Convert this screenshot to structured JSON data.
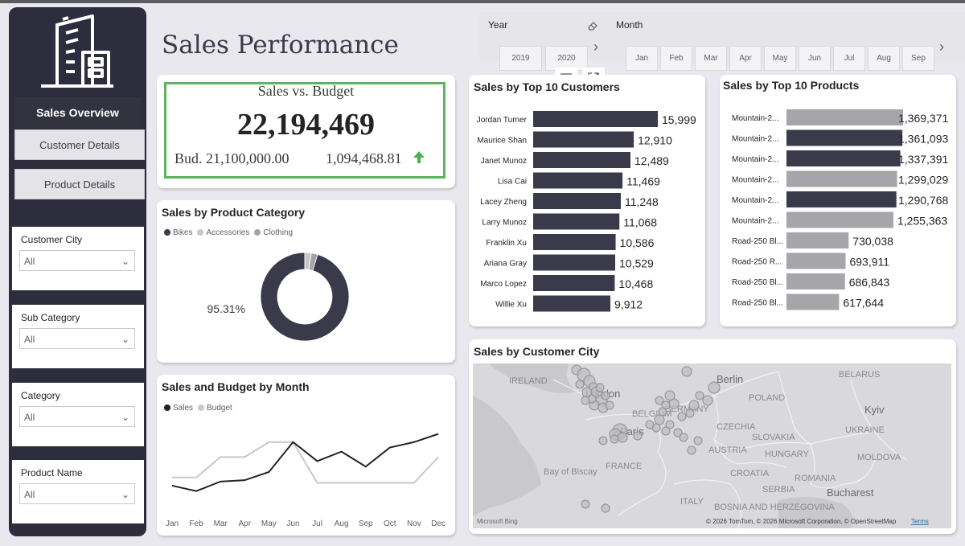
{
  "page": {
    "title": "Sales Performance"
  },
  "sidebar": {
    "nav_title": "Sales Overview",
    "nav_buttons": [
      "Customer Details",
      "Product Details"
    ],
    "slicers": [
      {
        "label": "Customer City",
        "value": "All"
      },
      {
        "label": "Sub Category",
        "value": "All"
      },
      {
        "label": "Category",
        "value": "All"
      },
      {
        "label": "Product Name",
        "value": "All"
      }
    ]
  },
  "filters": {
    "year_label": "Year",
    "years": [
      "2019",
      "2020"
    ],
    "month_label": "Month",
    "months": [
      "Jan",
      "Feb",
      "Mar",
      "Apr",
      "May",
      "Jun",
      "Jul",
      "Aug",
      "Sep"
    ]
  },
  "kpi": {
    "title": "Sales vs. Budget",
    "value": "22,194,469",
    "budget": "Bud. 21,100,000.00",
    "difference": "1,094,468.81",
    "up_color": "#4caf50"
  },
  "colors": {
    "dark": "#3a3a4a",
    "light": "#c8c8cc",
    "mid": "#a3a3a8"
  },
  "charts": {
    "customers_title": "Sales by Top 10 Customers",
    "products_title": "Sales by Top 10 Products",
    "category_title": "Sales by Product Category",
    "month_title": "Sales and Budget by Month",
    "city_title": "Sales by Customer City"
  },
  "map": {
    "labels": [
      "IRELAND",
      "London",
      "BELGIUM",
      "GERMANY",
      "Berlin",
      "POLAND",
      "BELARUS",
      "Kyiv",
      "UKRAINE",
      "CZECHIA",
      "SLOVAKIA",
      "Paris",
      "FRANCE",
      "Bay of Biscay",
      "AUSTRIA",
      "HUNGARY",
      "MOLDOVA",
      "ROMANIA",
      "Bucharest",
      "CROATIA",
      "SERBIA",
      "BOSNIA AND HERZEGOVINA",
      "ITALY"
    ],
    "attribution": "© 2026 TomTom, © 2026 Microsoft Corporation, © OpenStreetMap",
    "terms": "Terms",
    "brand": "Microsoft Bing"
  },
  "chart_data": [
    {
      "type": "bar",
      "title": "Sales by Top 10 Customers",
      "categories": [
        "Jordan Turner",
        "Maurice Shan",
        "Janet Munoz",
        "Lisa Cai",
        "Lacey Zheng",
        "Larry Munoz",
        "Franklin Xu",
        "Ariana Gray",
        "Marco Lopez",
        "Willie Xu"
      ],
      "values": [
        15999,
        12910,
        12489,
        11469,
        11248,
        11068,
        10586,
        10529,
        10468,
        9912
      ],
      "labels": [
        "15,999",
        "12,910",
        "12,489",
        "11,469",
        "11,248",
        "11,068",
        "10,586",
        "10,529",
        "10,468",
        "9,912"
      ]
    },
    {
      "type": "bar",
      "title": "Sales by Top 10 Products",
      "categories": [
        "Mountain-2...",
        "Mountain-2...",
        "Mountain-2...",
        "Mountain-2...",
        "Mountain-2...",
        "Mountain-2...",
        "Road-250 Bl...",
        "Road-250 R...",
        "Road-250 Bl...",
        "Road-250 Bl..."
      ],
      "values": [
        1369371,
        1361093,
        1337391,
        1299029,
        1290768,
        1255363,
        730038,
        693911,
        686843,
        617644
      ],
      "labels": [
        "1,369,371",
        "1,361,093",
        "1,337,391",
        "1,299,029",
        "1,290,768",
        "1,255,363",
        "730,038",
        "693,911",
        "686,843",
        "617,644"
      ],
      "dark": [
        false,
        true,
        true,
        false,
        true,
        false,
        false,
        false,
        false,
        false
      ]
    },
    {
      "type": "pie",
      "title": "Sales by Product Category",
      "categories": [
        "Bikes",
        "Accessories",
        "Clothing"
      ],
      "values": [
        95.31,
        2.4,
        2.29
      ],
      "data_label": "95.31%"
    },
    {
      "type": "line",
      "title": "Sales and Budget by Month",
      "categories": [
        "Jan",
        "Feb",
        "Mar",
        "Apr",
        "May",
        "Jun",
        "Jul",
        "Aug",
        "Sep",
        "Oct",
        "Nov",
        "Dec"
      ],
      "series": [
        {
          "name": "Sales",
          "values": [
            1.6,
            1.2,
            1.9,
            2.0,
            2.6,
            4.8,
            3.4,
            4.1,
            3.0,
            4.4,
            4.8,
            5.4
          ]
        },
        {
          "name": "Budget",
          "values": [
            2.2,
            2.2,
            3.7,
            3.7,
            4.8,
            4.8,
            1.8,
            1.8,
            1.8,
            1.8,
            1.8,
            3.7
          ]
        }
      ],
      "ylim": [
        0,
        6.5
      ]
    }
  ]
}
